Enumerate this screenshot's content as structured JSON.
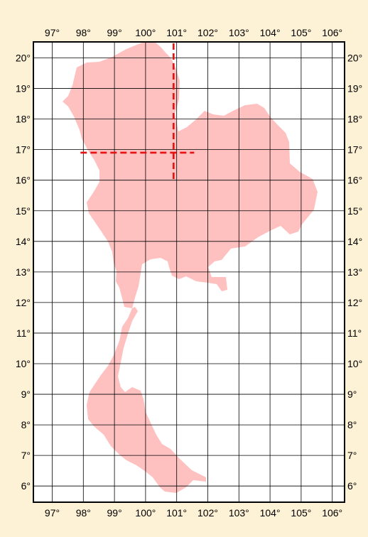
{
  "map": {
    "background_color": "#fdf1d6",
    "plot_background_color": "#ffffff",
    "land_color": "#ffc0c0",
    "grid_color": "#000000",
    "crosshair_color": "#e81010",
    "longitude_labels": [
      "97°",
      "98°",
      "99°",
      "100°",
      "101°",
      "102°",
      "103°",
      "104°",
      "105°",
      "106°"
    ],
    "latitude_labels": [
      "20°",
      "19°",
      "18°",
      "17°",
      "16°",
      "15°",
      "14°",
      "13°",
      "12°",
      "11°",
      "10°",
      "9°",
      "8°",
      "7°",
      "6°"
    ],
    "crosshair": {
      "longitude": 100.9,
      "latitude": 16.9
    }
  }
}
